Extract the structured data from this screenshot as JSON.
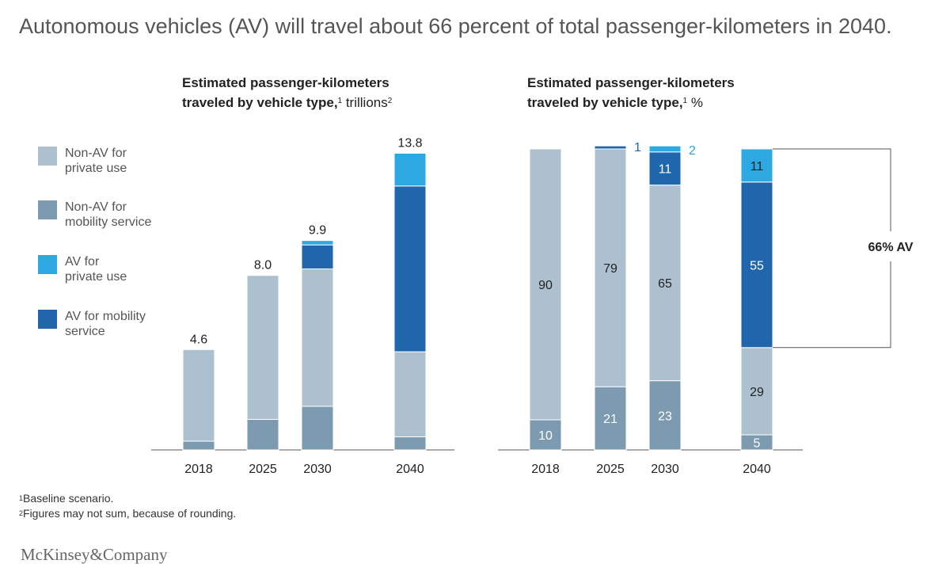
{
  "headline": "Autonomous vehicles (AV) will travel about 66 percent of total passenger-kilometers in 2040.",
  "left_title": {
    "line1": "Estimated passenger-kilometers",
    "line2_bold": "traveled by vehicle type,",
    "sup1": "1",
    "unit": " trillions",
    "sup2": "2"
  },
  "right_title": {
    "line1": "Estimated passenger-kilometers",
    "line2_bold": "traveled by vehicle type,",
    "sup1": "1",
    "unit": " %"
  },
  "legend": [
    {
      "line1": "Non-AV for",
      "line2": "private use",
      "color": "#adc0cf"
    },
    {
      "line1": "Non-AV for",
      "line2": "mobility service",
      "color": "#7c9ab0"
    },
    {
      "line1": "AV for",
      "line2": "private use",
      "color": "#2da8e0"
    },
    {
      "line1": "AV for mobility",
      "line2": "service",
      "color": "#1f66ad"
    }
  ],
  "footnotes": {
    "n1_mark": "1",
    "n1_text": "Baseline scenario.",
    "n2_mark": "2",
    "n2_text": "Figures may not sum, because of rounding."
  },
  "brand": "McKinsey&Company",
  "chart_data": [
    {
      "type": "bar",
      "stacked": true,
      "unit": "trillions",
      "categories": [
        "2018",
        "2025",
        "2030",
        "2040"
      ],
      "totals": [
        "4.6",
        "8.0",
        "9.9",
        "13.8"
      ],
      "ylim": [
        0,
        13.8
      ],
      "series": [
        {
          "name": "Non-AV for mobility service",
          "color": "#7c9ab0",
          "values": [
            0.4,
            1.4,
            2.0,
            0.6
          ]
        },
        {
          "name": "Non-AV for private use",
          "color": "#adc0cf",
          "values": [
            4.2,
            6.6,
            6.3,
            3.9
          ]
        },
        {
          "name": "AV for mobility service",
          "color": "#1f66ad",
          "values": [
            0,
            0,
            1.1,
            7.6
          ]
        },
        {
          "name": "AV for private use",
          "color": "#2da8e0",
          "values": [
            0,
            0,
            0.2,
            1.5
          ]
        }
      ]
    },
    {
      "type": "bar",
      "stacked": true,
      "unit": "%",
      "categories": [
        "2018",
        "2025",
        "2030",
        "2040"
      ],
      "ylim": [
        0,
        100
      ],
      "series": [
        {
          "name": "Non-AV for mobility service",
          "color": "#7c9ab0",
          "values": [
            10,
            21,
            23,
            5
          ],
          "labels": [
            "10",
            "21",
            "23",
            "5"
          ]
        },
        {
          "name": "Non-AV for private use",
          "color": "#adc0cf",
          "values": [
            90,
            79,
            65,
            29
          ],
          "labels": [
            "90",
            "79",
            "65",
            "29"
          ]
        },
        {
          "name": "AV for mobility service",
          "color": "#1f66ad",
          "values": [
            0,
            1,
            11,
            55
          ],
          "labels": [
            "",
            "1",
            "11",
            "55"
          ]
        },
        {
          "name": "AV for private use",
          "color": "#2da8e0",
          "values": [
            0,
            0,
            2,
            11
          ],
          "labels": [
            "",
            "",
            "2",
            "11"
          ]
        }
      ],
      "annotation": "66% AV"
    }
  ]
}
